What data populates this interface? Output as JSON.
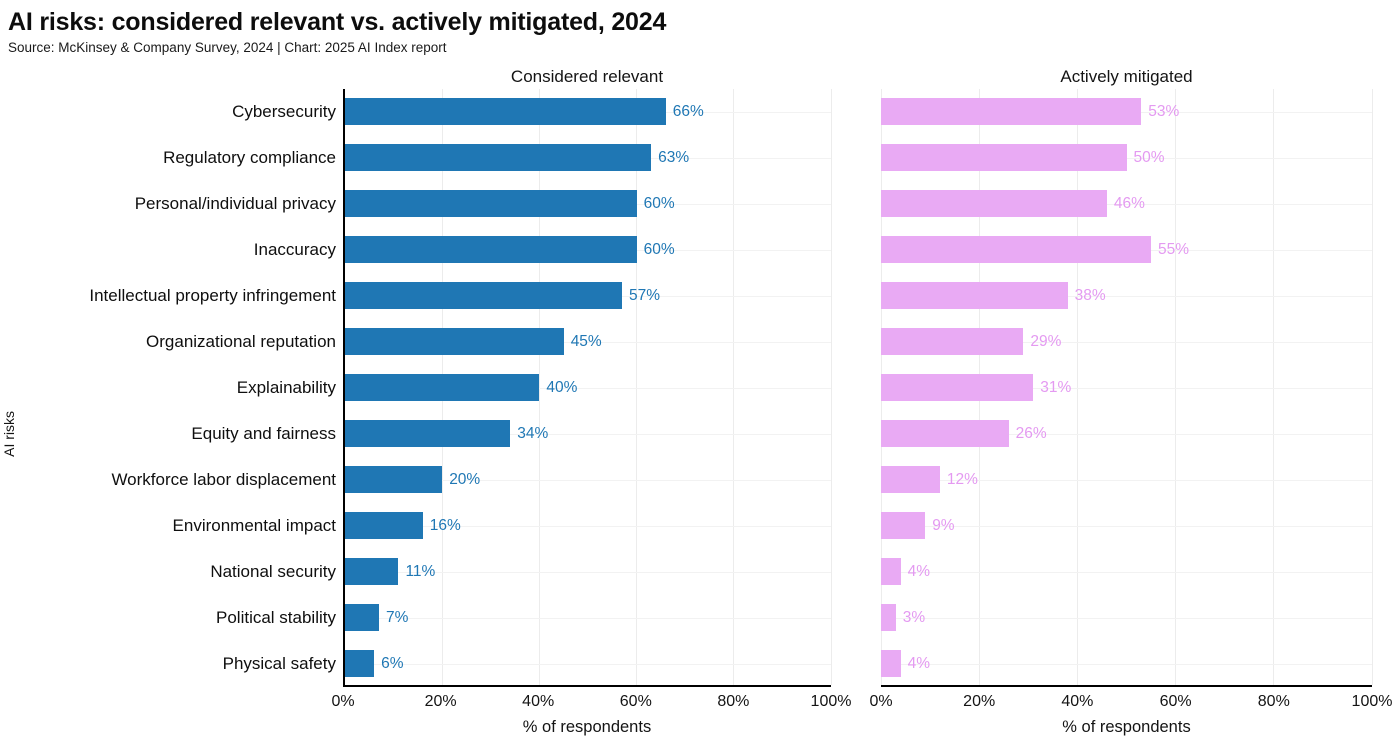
{
  "header": {
    "title": "AI risks: considered relevant vs. actively mitigated, 2024",
    "source": "Source: McKinsey & Company Survey, 2024 | Chart: 2025 AI Index report"
  },
  "chart_data": {
    "type": "bar",
    "orientation": "horizontal",
    "title": "AI risks: considered relevant vs. actively mitigated, 2024",
    "categories": [
      "Cybersecurity",
      "Regulatory compliance",
      "Personal/individual privacy",
      "Inaccuracy",
      "Intellectual property infringement",
      "Organizational reputation",
      "Explainability",
      "Equity and fairness",
      "Workforce labor displacement",
      "Environmental impact",
      "National security",
      "Political stability",
      "Physical safety"
    ],
    "series": [
      {
        "name": "Considered relevant",
        "values": [
          66,
          63,
          60,
          60,
          57,
          45,
          40,
          34,
          20,
          16,
          11,
          7,
          6
        ],
        "bar_color": "#1f77b4",
        "label_color": "#1f77b4"
      },
      {
        "name": "Actively mitigated",
        "values": [
          53,
          50,
          46,
          55,
          38,
          29,
          31,
          26,
          12,
          9,
          4,
          3,
          4
        ],
        "bar_color": "#e9aaf4",
        "label_color": "#e49af1"
      }
    ],
    "xlabel": "% of respondents",
    "ylabel": "AI risks",
    "xlim": [
      0,
      100
    ],
    "xticks_pct": [
      0,
      20,
      40,
      60,
      80,
      100
    ],
    "xtick_labels": [
      "0%",
      "20%",
      "40%",
      "60%",
      "80%",
      "100%"
    ],
    "value_suffix": "%",
    "grid": true,
    "grid_vertical_color": "#ececec",
    "grid_horizontal_color": "#f2f2f2",
    "axis_color": "#000000"
  }
}
